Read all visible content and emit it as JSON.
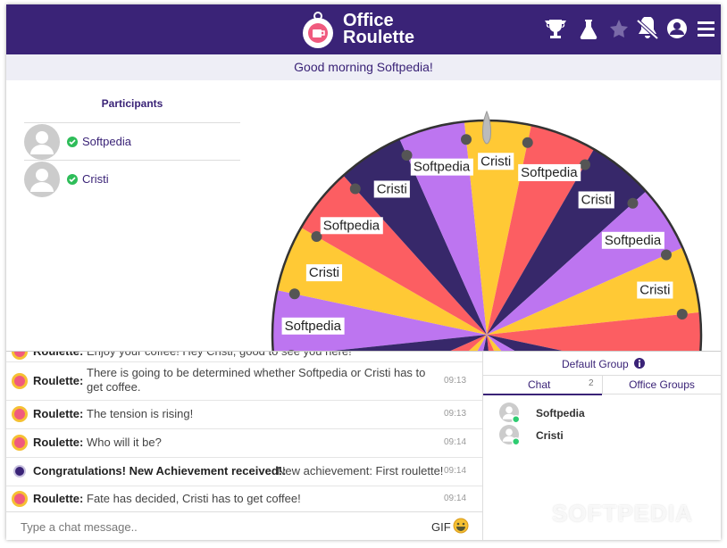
{
  "header": {
    "logo_line1": "Office",
    "logo_line2": "Roulette"
  },
  "greeting": "Good morning Softpedia!",
  "participants": {
    "title": "Participants",
    "names": [
      "Softpedia",
      "Cristi"
    ]
  },
  "wheel": {
    "labels": [
      "Softpedia",
      "Cristi",
      "Softpedia",
      "Cristi",
      "Softpedia",
      "Cristi",
      "Softpedia",
      "Cristi",
      "Softpedia",
      "Cristi"
    ],
    "colors": [
      "#bd75f0",
      "#ffc935",
      "#fc5e62",
      "#37286a"
    ]
  },
  "chat": {
    "messages": [
      {
        "sender": "Roulette:",
        "text": "Enjoy your coffee! Hey Cristi, good to see you here!"
      },
      {
        "sender": "Roulette:",
        "text": "There is going to be determined whether Softpedia or Cristi has to get coffee.",
        "time": "09:13"
      },
      {
        "sender": "Roulette:",
        "text": "The tension is rising!",
        "time": "09:13"
      },
      {
        "sender": "Roulette:",
        "text": "Who will it be?",
        "time": "09:14"
      },
      {
        "sender": "Congratulations! New Achievement received!:",
        "text": "New achievement: First roulette!",
        "time": "09:14"
      },
      {
        "sender": "Roulette:",
        "text": "Fate has decided, Cristi has to get coffee!",
        "time": "09:14"
      }
    ],
    "placeholder": "Type a chat message..",
    "gif": "GIF"
  },
  "sidebar": {
    "group": "Default Group",
    "tab_chat": "Chat",
    "tab_count": "2",
    "tab_groups": "Office Groups",
    "users": [
      "Softpedia",
      "Cristi"
    ]
  },
  "watermark": "SOFTPEDIA"
}
